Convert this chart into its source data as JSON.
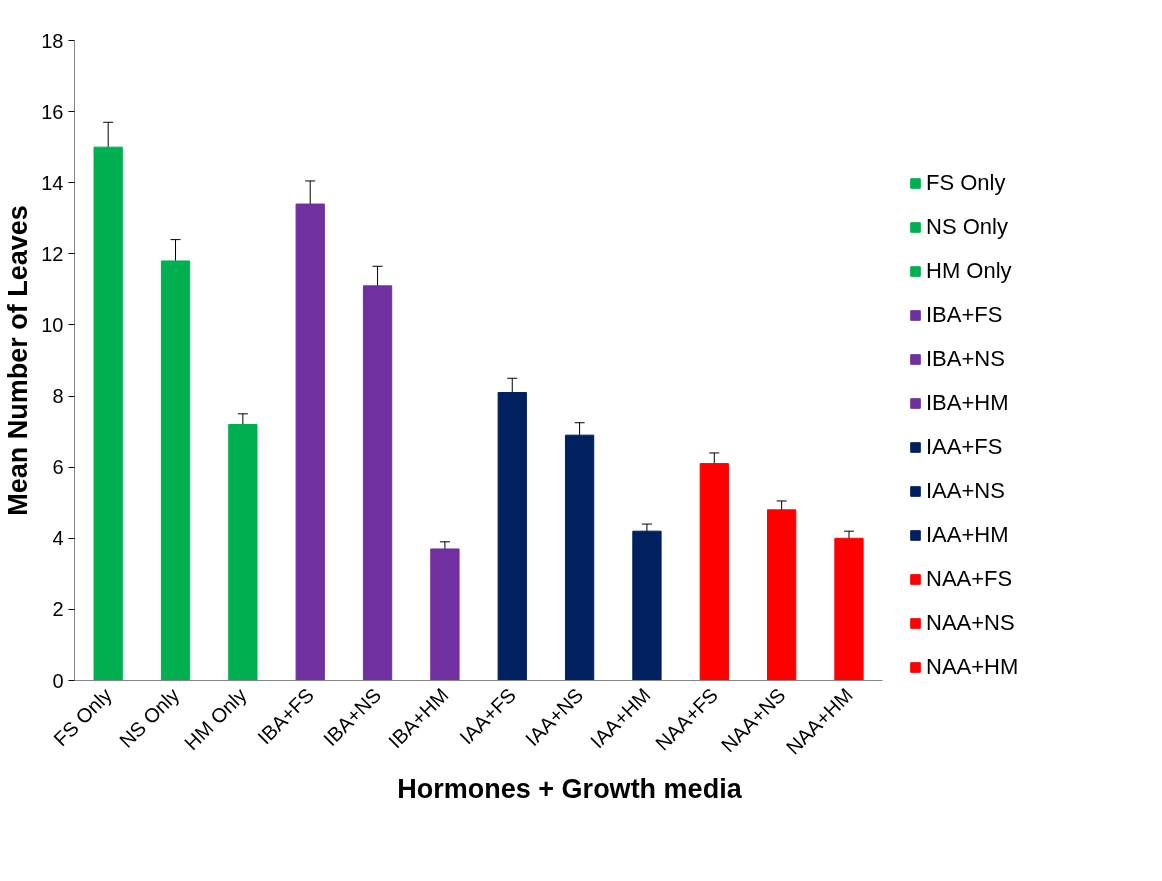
{
  "chart_data": {
    "type": "bar",
    "xlabel": "Hormones + Growth media",
    "ylabel": "Mean Number of Leaves",
    "categories": [
      "FS Only",
      "NS Only",
      "HM Only",
      "IBA+FS",
      "IBA+NS",
      "IBA+HM",
      "IAA+FS",
      "IAA+NS",
      "IAA+HM",
      "NAA+FS",
      "NAA+NS",
      "NAA+HM"
    ],
    "series": [
      {
        "name": "FS Only",
        "color": "#00b050",
        "values": [
          15.0,
          null,
          null,
          null,
          null,
          null,
          null,
          null,
          null,
          null,
          null,
          null
        ],
        "errors": [
          0.7,
          null,
          null,
          null,
          null,
          null,
          null,
          null,
          null,
          null,
          null,
          null
        ]
      },
      {
        "name": "NS Only",
        "color": "#00b050",
        "values": [
          null,
          11.8,
          null,
          null,
          null,
          null,
          null,
          null,
          null,
          null,
          null,
          null
        ],
        "errors": [
          null,
          0.6,
          null,
          null,
          null,
          null,
          null,
          null,
          null,
          null,
          null,
          null
        ]
      },
      {
        "name": "HM Only",
        "color": "#00b050",
        "values": [
          null,
          null,
          7.2,
          null,
          null,
          null,
          null,
          null,
          null,
          null,
          null,
          null
        ],
        "errors": [
          null,
          null,
          0.3,
          null,
          null,
          null,
          null,
          null,
          null,
          null,
          null,
          null
        ]
      },
      {
        "name": "IBA+FS",
        "color": "#7030a0",
        "values": [
          null,
          null,
          null,
          13.4,
          null,
          null,
          null,
          null,
          null,
          null,
          null,
          null
        ],
        "errors": [
          null,
          null,
          null,
          0.65,
          null,
          null,
          null,
          null,
          null,
          null,
          null,
          null
        ]
      },
      {
        "name": "IBA+NS",
        "color": "#7030a0",
        "values": [
          null,
          null,
          null,
          null,
          11.1,
          null,
          null,
          null,
          null,
          null,
          null,
          null
        ],
        "errors": [
          null,
          null,
          null,
          null,
          0.55,
          null,
          null,
          null,
          null,
          null,
          null,
          null
        ]
      },
      {
        "name": "IBA+HM",
        "color": "#7030a0",
        "values": [
          null,
          null,
          null,
          null,
          null,
          3.7,
          null,
          null,
          null,
          null,
          null,
          null
        ],
        "errors": [
          null,
          null,
          null,
          null,
          null,
          0.2,
          null,
          null,
          null,
          null,
          null,
          null
        ]
      },
      {
        "name": "IAA+FS",
        "color": "#002060",
        "values": [
          null,
          null,
          null,
          null,
          null,
          null,
          8.1,
          null,
          null,
          null,
          null,
          null
        ],
        "errors": [
          null,
          null,
          null,
          null,
          null,
          null,
          0.4,
          null,
          null,
          null,
          null,
          null
        ]
      },
      {
        "name": "IAA+NS",
        "color": "#002060",
        "values": [
          null,
          null,
          null,
          null,
          null,
          null,
          null,
          6.9,
          null,
          null,
          null,
          null
        ],
        "errors": [
          null,
          null,
          null,
          null,
          null,
          null,
          null,
          0.35,
          null,
          null,
          null,
          null
        ]
      },
      {
        "name": "IAA+HM",
        "color": "#002060",
        "values": [
          null,
          null,
          null,
          null,
          null,
          null,
          null,
          null,
          4.2,
          null,
          null,
          null
        ],
        "errors": [
          null,
          null,
          null,
          null,
          null,
          null,
          null,
          null,
          0.2,
          null,
          null,
          null
        ]
      },
      {
        "name": "NAA+FS",
        "color": "#ff0000",
        "values": [
          null,
          null,
          null,
          null,
          null,
          null,
          null,
          null,
          null,
          6.1,
          null,
          null
        ],
        "errors": [
          null,
          null,
          null,
          null,
          null,
          null,
          null,
          null,
          null,
          0.3,
          null,
          null
        ]
      },
      {
        "name": "NAA+NS",
        "color": "#ff0000",
        "values": [
          null,
          null,
          null,
          null,
          null,
          null,
          null,
          null,
          null,
          null,
          4.8,
          null
        ],
        "errors": [
          null,
          null,
          null,
          null,
          null,
          null,
          null,
          null,
          null,
          null,
          0.25,
          null
        ]
      },
      {
        "name": "NAA+HM",
        "color": "#ff0000",
        "values": [
          null,
          null,
          null,
          null,
          null,
          null,
          null,
          null,
          null,
          null,
          null,
          4.0
        ],
        "errors": [
          null,
          null,
          null,
          null,
          null,
          null,
          null,
          null,
          null,
          null,
          null,
          0.2
        ]
      }
    ],
    "ylim": [
      0,
      18
    ],
    "yticks": [
      0,
      2,
      4,
      6,
      8,
      10,
      12,
      14,
      16,
      18
    ],
    "grid": false,
    "legend": "right"
  }
}
